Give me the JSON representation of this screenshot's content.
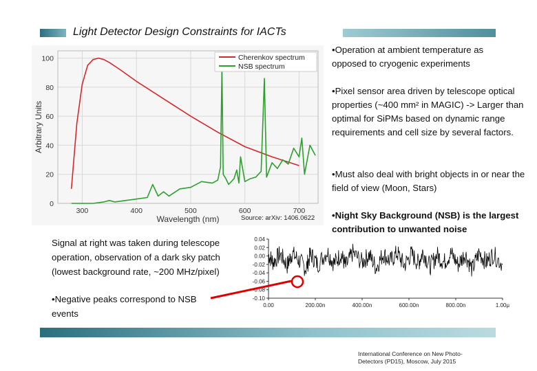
{
  "slide": {
    "title": "Light Detector Design Constraints for IACTs",
    "bullets": [
      {
        "text": "•Operation at ambient temperature as opposed to cryogenic experiments",
        "bold": false
      },
      {
        "text": "•Pixel sensor area driven by telescope optical properties (~400 mm² in MAGIC) -> Larger than optimal for SiPMs based on dynamic range requirements and cell size by several factors.",
        "bold": false
      },
      {
        "text": "•Must also deal with bright objects in or near the field of view (Moon, Stars)",
        "bold": false
      },
      {
        "text": "•Night Sky Background (NSB) is the largest contribution to unwanted noise",
        "bold": true
      }
    ],
    "signal_note": "Signal at right was taken during telescope operation, observation of a dark sky patch (lowest background rate, ~200 MHz/pixel)",
    "peaks_note": "•Negative peaks correspond to NSB events",
    "source": "Source: arXiv: 1406.0622",
    "footer": "International Conference on New Photo-Detectors (PD15), Moscow, July 2015",
    "colors": {
      "accent_bar": "#4f8f9c",
      "cherenkov": "#d62728",
      "nsb": "#2ca02c",
      "pointer": "#e00000"
    }
  },
  "chart_data": [
    {
      "type": "line",
      "xlabel": "Wavelength (nm)",
      "ylabel": "Arbitrary Units",
      "xlim": [
        255,
        735
      ],
      "ylim": [
        0,
        105
      ],
      "xticks": [
        "300",
        "400",
        "500",
        "600",
        "700"
      ],
      "yticks": [
        "0",
        "20",
        "40",
        "60",
        "80",
        "100"
      ],
      "grid": true,
      "legend_position": "top-right",
      "series": [
        {
          "name": "Cherenkov spectrum",
          "x": [
            280,
            290,
            300,
            310,
            320,
            330,
            340,
            350,
            370,
            400,
            450,
            500,
            550,
            600,
            650,
            700
          ],
          "y": [
            10,
            55,
            82,
            95,
            99,
            100,
            99,
            97,
            92,
            84,
            72,
            60,
            49,
            39,
            32,
            26
          ]
        },
        {
          "name": "NSB spectrum",
          "x": [
            280,
            300,
            320,
            340,
            350,
            360,
            380,
            400,
            420,
            430,
            440,
            450,
            460,
            480,
            500,
            520,
            540,
            550,
            555,
            557.7,
            560,
            565,
            570,
            580,
            585,
            589,
            592,
            600,
            610,
            620,
            630,
            636,
            640,
            650,
            660,
            670,
            680,
            690,
            700,
            705,
            710,
            720,
            730
          ],
          "y": [
            0,
            0,
            0,
            1,
            2,
            1,
            2,
            3,
            4,
            13,
            5,
            8,
            5,
            10,
            11,
            15,
            14,
            16,
            25,
            93,
            20,
            17,
            13,
            17,
            23,
            14,
            32,
            15,
            17,
            18,
            22,
            86,
            18,
            28,
            24,
            30,
            27,
            38,
            32,
            45,
            20,
            40,
            33
          ]
        }
      ]
    },
    {
      "type": "line",
      "xlim": [
        0,
        1
      ],
      "ylim": [
        -0.1,
        0.04
      ],
      "xticks": [
        "0.00",
        "200.00n",
        "400.00n",
        "600.00n",
        "800.00n",
        "1.00µ"
      ],
      "yticks": [
        "0.04",
        "0.02",
        "0.00",
        "-0.02",
        "-0.04",
        "-0.06",
        "-0.08",
        "-0.10"
      ],
      "series": [
        {
          "x": [
            0.0,
            0.02,
            0.05,
            0.08,
            0.1,
            0.13,
            0.16,
            0.18,
            0.21,
            0.25,
            0.28,
            0.31,
            0.33,
            0.36,
            0.4,
            0.43,
            0.46,
            0.49,
            0.52,
            0.55,
            0.58,
            0.61,
            0.64,
            0.66,
            0.69,
            0.72,
            0.75,
            0.78,
            0.81,
            0.84,
            0.87,
            0.9,
            0.93,
            0.96,
            1.0
          ],
          "y": [
            0.005,
            -0.03,
            0.01,
            -0.045,
            0.012,
            -0.02,
            -0.06,
            0.01,
            -0.04,
            0.02,
            -0.035,
            0.008,
            -0.05,
            0.015,
            -0.03,
            0.005,
            -0.055,
            0.01,
            -0.025,
            0.015,
            -0.045,
            0.01,
            -0.035,
            0.02,
            -0.05,
            0.005,
            -0.03,
            0.012,
            -0.04,
            0.01,
            -0.065,
            0.015,
            -0.03,
            0.008,
            -0.04
          ]
        }
      ]
    }
  ]
}
